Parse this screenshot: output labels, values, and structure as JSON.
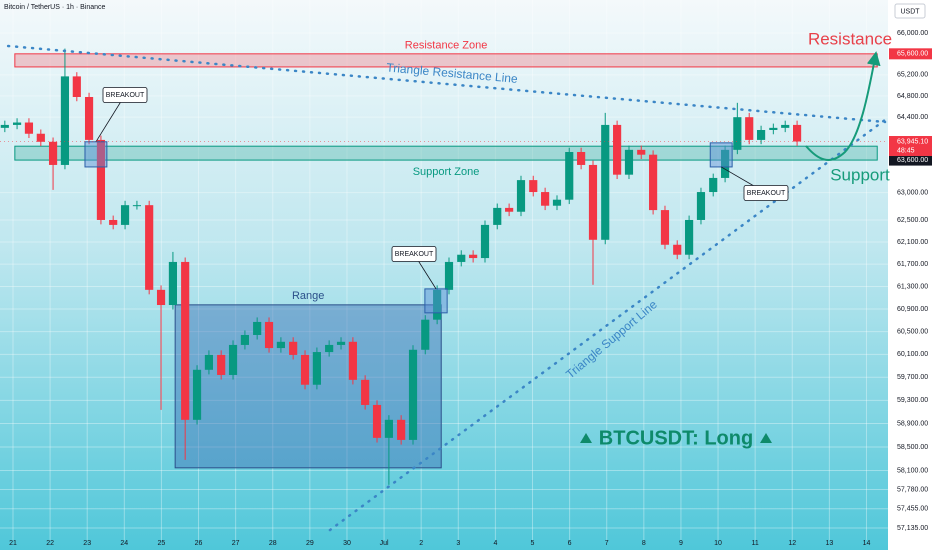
{
  "chart_data": {
    "type": "candlestick",
    "title": "Bitcoin / TetherUS · 1h · Binance",
    "currency": "USDT",
    "log_scale": true,
    "grid": true,
    "up_color": "#089981",
    "down_color": "#f23645",
    "xlim": [
      -0.35,
      23.58
    ],
    "ylim": [
      56935,
      66637
    ],
    "xticks": [
      {
        "value": 0,
        "label": "21"
      },
      {
        "value": 1,
        "label": "22"
      },
      {
        "value": 2,
        "label": "23"
      },
      {
        "value": 3,
        "label": "24"
      },
      {
        "value": 4,
        "label": "25"
      },
      {
        "value": 5,
        "label": "26"
      },
      {
        "value": 6,
        "label": "27"
      },
      {
        "value": 7,
        "label": "28"
      },
      {
        "value": 8,
        "label": "29"
      },
      {
        "value": 9,
        "label": "30"
      },
      {
        "value": 10,
        "label": "Jul"
      },
      {
        "value": 11,
        "label": "2"
      },
      {
        "value": 12,
        "label": "3"
      },
      {
        "value": 13,
        "label": "4"
      },
      {
        "value": 14,
        "label": "5"
      },
      {
        "value": 15,
        "label": "6"
      },
      {
        "value": 16,
        "label": "7"
      },
      {
        "value": 17,
        "label": "8"
      },
      {
        "value": 18,
        "label": "9"
      },
      {
        "value": 19,
        "label": "10"
      },
      {
        "value": 20,
        "label": "11"
      },
      {
        "value": 21,
        "label": "12"
      },
      {
        "value": 22,
        "label": "13"
      },
      {
        "value": 23,
        "label": "14"
      }
    ],
    "yticks": [
      {
        "value": 66000,
        "label": "66,000.00"
      },
      {
        "value": 65200,
        "label": "65,200.00"
      },
      {
        "value": 64800,
        "label": "64,800.00"
      },
      {
        "value": 64400,
        "label": "64,400.00"
      },
      {
        "value": 63000,
        "label": "63,000.00"
      },
      {
        "value": 62500,
        "label": "62,500.00"
      },
      {
        "value": 62100,
        "label": "62,100.00"
      },
      {
        "value": 61700,
        "label": "61,700.00"
      },
      {
        "value": 61300,
        "label": "61,300.00"
      },
      {
        "value": 60900,
        "label": "60,900.00"
      },
      {
        "value": 60500,
        "label": "60,500.00"
      },
      {
        "value": 60100,
        "label": "60,100.00"
      },
      {
        "value": 59700,
        "label": "59,700.00"
      },
      {
        "value": 59300,
        "label": "59,300.00"
      },
      {
        "value": 58900,
        "label": "58,900.00"
      },
      {
        "value": 58500,
        "label": "58,500.00"
      },
      {
        "value": 58100,
        "label": "58,100.00"
      },
      {
        "value": 57780,
        "label": "57,780.00"
      },
      {
        "value": 57455,
        "label": "57,455.00"
      },
      {
        "value": 57135,
        "label": "57,135.00"
      }
    ],
    "price_labels": [
      {
        "value": 65600,
        "label": "65,600.00",
        "color": "#f23645"
      },
      {
        "value": 63600,
        "label": "63,600.00",
        "color": "#131722"
      }
    ],
    "last_price": {
      "value": 63945.1,
      "label": "63,945.10",
      "countdown": "48:45",
      "color": "#f23645"
    },
    "candles": {
      "x": [
        -0.22,
        0.11,
        0.43,
        0.75,
        1.08,
        1.4,
        1.72,
        2.05,
        2.37,
        2.7,
        3.02,
        3.34,
        3.67,
        3.99,
        4.31,
        4.64,
        4.96,
        5.28,
        5.61,
        5.93,
        6.25,
        6.58,
        6.9,
        7.22,
        7.55,
        7.87,
        8.19,
        8.52,
        8.84,
        9.16,
        9.49,
        9.81,
        10.13,
        10.46,
        10.78,
        11.11,
        11.43,
        11.75,
        12.08,
        12.4,
        12.72,
        13.05,
        13.37,
        13.69,
        14.02,
        14.34,
        14.66,
        14.99,
        15.31,
        15.63,
        15.96,
        16.28,
        16.6,
        16.93,
        17.25,
        17.57,
        17.9,
        18.22,
        18.54,
        18.87,
        19.19,
        19.52,
        19.84,
        20.16,
        20.49,
        20.81,
        21.13
      ],
      "open": [
        64200,
        64255,
        64300,
        64090,
        63940,
        63510,
        65170,
        64780,
        63975,
        62500,
        62410,
        62770,
        62770,
        61240,
        60970,
        61740,
        58964,
        59830,
        60090,
        59740,
        60265,
        60440,
        60670,
        60210,
        60320,
        60090,
        59570,
        60140,
        60265,
        60320,
        59655,
        59220,
        58655,
        58964,
        58620,
        60180,
        60710,
        61240,
        61740,
        61870,
        61810,
        62410,
        62720,
        62650,
        63230,
        63010,
        62760,
        62870,
        63750,
        63510,
        62140,
        64255,
        63330,
        63790,
        63700,
        62680,
        62050,
        61870,
        62500,
        63010,
        63270,
        63790,
        64400,
        63975,
        64160,
        64200,
        64255
      ],
      "high": [
        64335,
        64380,
        64380,
        64170,
        64020,
        65700,
        65250,
        64860,
        64055,
        62580,
        62850,
        62850,
        62850,
        61320,
        61921,
        61820,
        59910,
        60170,
        60170,
        60345,
        60520,
        60750,
        60750,
        60400,
        60400,
        60170,
        60220,
        60345,
        60400,
        60400,
        59735,
        59300,
        59044,
        59044,
        60260,
        60790,
        61320,
        61820,
        61950,
        61950,
        62490,
        62800,
        62800,
        63310,
        63310,
        63090,
        62950,
        63830,
        63830,
        63590,
        64480,
        64335,
        63870,
        63870,
        63780,
        62760,
        62130,
        62580,
        63090,
        63350,
        63870,
        64670,
        64480,
        64240,
        64280,
        64335,
        64335
      ],
      "low": [
        64120,
        64175,
        64010,
        63860,
        63050,
        63430,
        64700,
        63895,
        62420,
        62330,
        62330,
        62690,
        61160,
        59135,
        60890,
        58280,
        58884,
        59750,
        59660,
        59660,
        60185,
        60360,
        60130,
        60130,
        60010,
        59490,
        59490,
        60060,
        60185,
        59575,
        59140,
        58575,
        57858,
        58540,
        58540,
        60100,
        60630,
        61160,
        61660,
        61730,
        61730,
        62330,
        62570,
        62570,
        62930,
        62680,
        62680,
        62790,
        63430,
        61330,
        62060,
        63250,
        63250,
        63620,
        62600,
        61970,
        61790,
        61790,
        62420,
        62930,
        63190,
        63710,
        63895,
        63895,
        64080,
        64120,
        63865
      ],
      "close": [
        64255,
        64300,
        64090,
        63940,
        63510,
        65170,
        64780,
        63975,
        62500,
        62410,
        62770,
        62770,
        61240,
        60970,
        61740,
        58964,
        59830,
        60090,
        59740,
        60265,
        60440,
        60670,
        60210,
        60320,
        60090,
        59570,
        60140,
        60265,
        60320,
        59655,
        59220,
        58655,
        58964,
        58620,
        60180,
        60710,
        61240,
        61740,
        61870,
        61810,
        62410,
        62720,
        62650,
        63230,
        63010,
        62760,
        62870,
        63750,
        63510,
        62140,
        64255,
        63330,
        63790,
        63700,
        62680,
        62050,
        61870,
        62500,
        63010,
        63270,
        63790,
        64400,
        63975,
        64160,
        64200,
        64255,
        63945
      ]
    },
    "zones": [
      {
        "label": "Resistance Zone",
        "low": 65350,
        "high": 65600,
        "x0": 0.05,
        "x1": 23.29,
        "color": "#f23645"
      },
      {
        "label": "Support Zone",
        "low": 63600,
        "high": 63858,
        "x0": 0.05,
        "x1": 23.29,
        "color": "#089981"
      }
    ],
    "range_box": {
      "label": "Range",
      "low": 58145,
      "high": 60973,
      "x0": 4.37,
      "x1": 11.54
    },
    "breakouts": [
      {
        "label": "BREAKOUT",
        "x0": 1.94,
        "x1": 2.53,
        "low": 63473,
        "high": 63940
      },
      {
        "label": "BREAKOUT",
        "x0": 11.1,
        "x1": 11.7,
        "low": 60831,
        "high": 61257
      },
      {
        "label": "BREAKOUT",
        "x0": 18.79,
        "x1": 19.38,
        "low": 63473,
        "high": 63920
      }
    ],
    "trend_lines": [
      {
        "label": "Triangle Resistance Line",
        "x": [
          -0.13,
          23.5
        ],
        "y": [
          65750,
          64310
        ]
      },
      {
        "label": "Triangle Support Line",
        "x": [
          8.54,
          23.5
        ],
        "y": [
          57100,
          64349
        ]
      }
    ],
    "annotations": {
      "resistance": "Resistance",
      "support": "Support",
      "signal": "BTCUSDT: Long"
    }
  }
}
